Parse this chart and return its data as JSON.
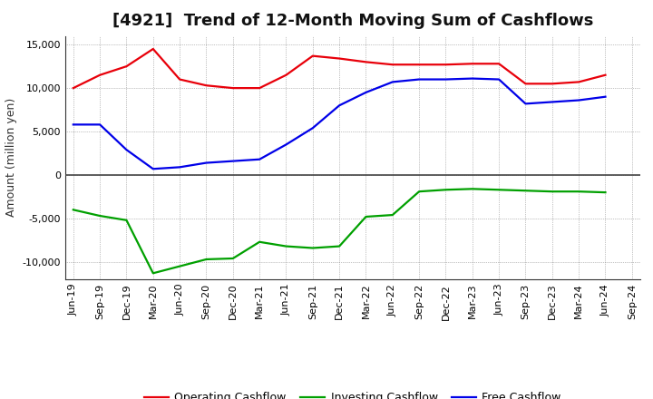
{
  "title": "[4921]  Trend of 12-Month Moving Sum of Cashflows",
  "ylabel": "Amount (million yen)",
  "xlabels": [
    "Jun-19",
    "Sep-19",
    "Dec-19",
    "Mar-20",
    "Jun-20",
    "Sep-20",
    "Dec-20",
    "Mar-21",
    "Jun-21",
    "Sep-21",
    "Dec-21",
    "Mar-22",
    "Jun-22",
    "Sep-22",
    "Dec-22",
    "Mar-23",
    "Jun-23",
    "Sep-23",
    "Dec-23",
    "Mar-24",
    "Jun-24",
    "Sep-24"
  ],
  "operating": [
    10000,
    11500,
    12500,
    14500,
    11000,
    10300,
    10000,
    10000,
    11500,
    13700,
    13400,
    13000,
    12700,
    12700,
    12700,
    12800,
    12800,
    10500,
    10500,
    10700,
    11500,
    null
  ],
  "investing": [
    -4000,
    -4700,
    -5200,
    -11300,
    -10500,
    -9700,
    -9600,
    -7700,
    -8200,
    -8400,
    -8200,
    -4800,
    -4600,
    -1900,
    -1700,
    -1600,
    -1700,
    -1800,
    -1900,
    -1900,
    -2000,
    null
  ],
  "free": [
    5800,
    5800,
    2900,
    700,
    900,
    1400,
    1600,
    1800,
    3500,
    5400,
    8000,
    9500,
    10700,
    11000,
    11000,
    11100,
    11000,
    8200,
    8400,
    8600,
    9000,
    null
  ],
  "operating_color": "#e8000a",
  "investing_color": "#00a000",
  "free_color": "#0000e8",
  "ylim": [
    -12000,
    16000
  ],
  "yticks": [
    -10000,
    -5000,
    0,
    5000,
    10000,
    15000
  ],
  "background_color": "#ffffff",
  "plot_bg_color": "#ffffff",
  "grid_color": "#888888",
  "zero_line_color": "#444444",
  "title_fontsize": 13,
  "axis_fontsize": 9,
  "tick_fontsize": 8,
  "legend_fontsize": 9,
  "linewidth": 1.6
}
